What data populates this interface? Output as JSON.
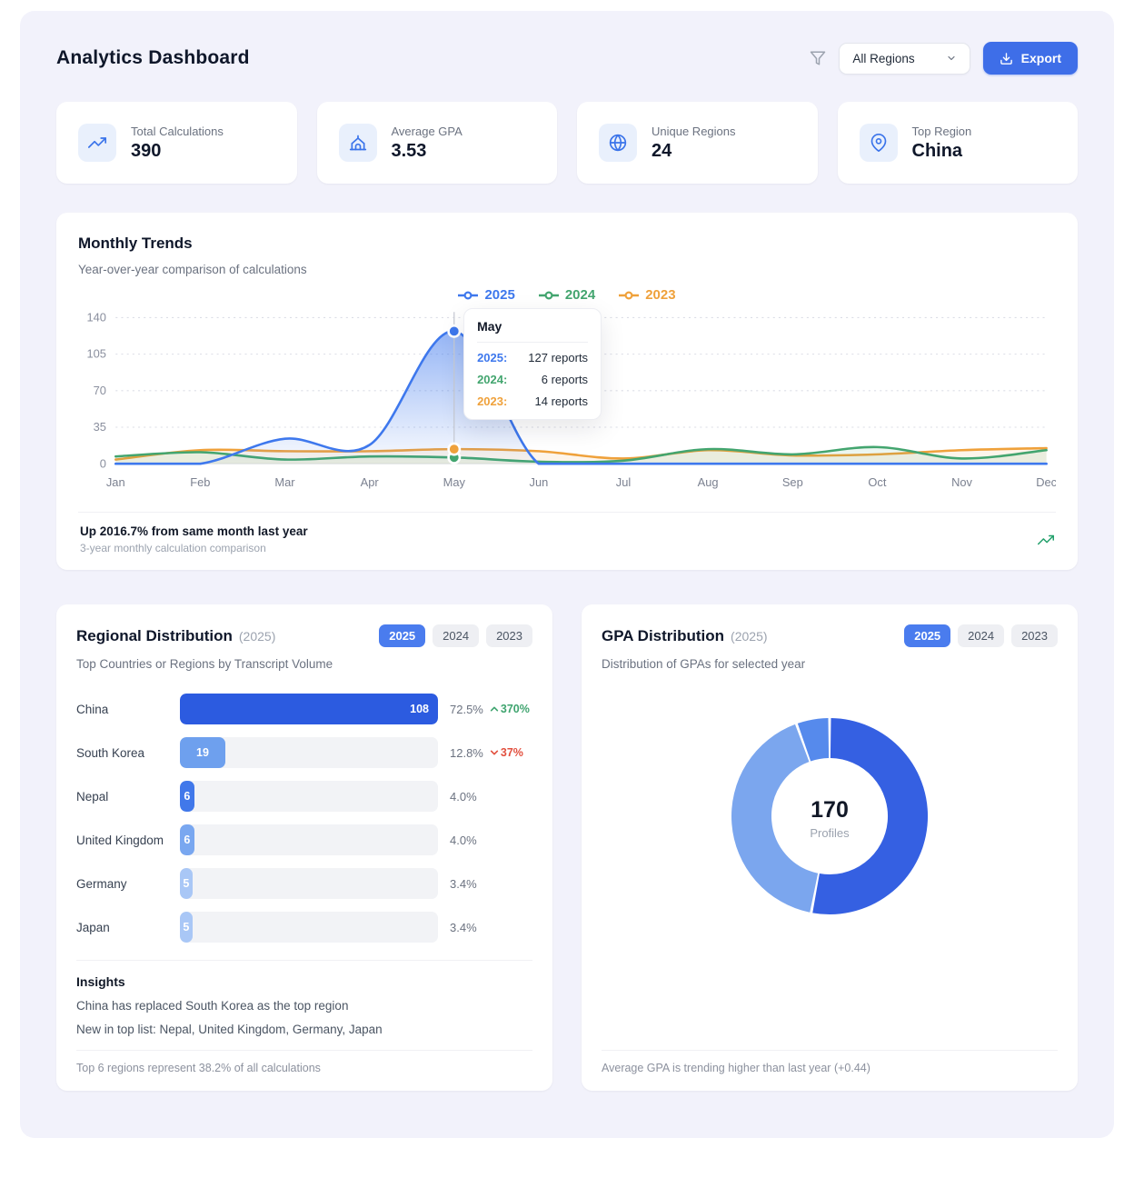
{
  "header": {
    "title": "Analytics Dashboard",
    "filter_icon": "funnel-icon",
    "region_filter": "All Regions",
    "export_label": "Export",
    "export_icon": "download-icon"
  },
  "stats": [
    {
      "label": "Total Calculations",
      "value": "390",
      "icon": "trending-up-icon"
    },
    {
      "label": "Average GPA",
      "value": "3.53",
      "icon": "school-icon"
    },
    {
      "label": "Unique Regions",
      "value": "24",
      "icon": "globe-icon"
    },
    {
      "label": "Top Region",
      "value": "China",
      "icon": "map-pin-icon"
    }
  ],
  "monthly_trends": {
    "title": "Monthly Trends",
    "subtitle": "Year-over-year comparison of calculations",
    "tooltip": {
      "month": "May",
      "rows": [
        {
          "year": "2025:",
          "value": "127 reports",
          "color": "#3E78ED"
        },
        {
          "year": "2024:",
          "value": "6 reports",
          "color": "#43A56F"
        },
        {
          "year": "2023:",
          "value": "14 reports",
          "color": "#EFA13B"
        }
      ]
    },
    "footer_bold": "Up 2016.7% from same month last year",
    "footer_sub": "3-year monthly calculation comparison",
    "footer_icon": "trending-up-icon"
  },
  "regional": {
    "title": "Regional Distribution",
    "title_suffix": "(2025)",
    "years": [
      "2025",
      "2024",
      "2023"
    ],
    "active_year": "2025",
    "subtitle": "Top Countries or Regions by Transcript Volume",
    "insights_title": "Insights",
    "insights_lines": [
      "China has replaced South Korea as the top region",
      "New in top list: Nepal, United Kingdom, Germany, Japan"
    ],
    "footer": "Top 6 regions represent 38.2% of all calculations"
  },
  "gpa": {
    "title": "GPA Distribution",
    "title_suffix": "(2025)",
    "years": [
      "2025",
      "2024",
      "2023"
    ],
    "active_year": "2025",
    "subtitle": "Distribution of GPAs for selected year",
    "footer": "Average GPA is trending higher than last year (+0.44)"
  },
  "colors": {
    "accent_blue": "#3E6EE8",
    "positive_green": "#3FA46F",
    "negative_red": "#E2503F"
  },
  "chart_data": [
    {
      "id": "monthly-trends",
      "type": "line",
      "title": "Monthly Trends",
      "x": [
        "Jan",
        "Feb",
        "Mar",
        "Apr",
        "May",
        "Jun",
        "Jul",
        "Aug",
        "Sep",
        "Oct",
        "Nov",
        "Dec"
      ],
      "series": [
        {
          "name": "2025",
          "color": "#3E78ED",
          "values": [
            0,
            0,
            24,
            18,
            127,
            0,
            0,
            0,
            0,
            0,
            0,
            0
          ],
          "area": "gradient"
        },
        {
          "name": "2024",
          "color": "#43A56F",
          "values": [
            7,
            11,
            4,
            7,
            6,
            2,
            3,
            14,
            9,
            16,
            5,
            13
          ],
          "area": "faint"
        },
        {
          "name": "2023",
          "color": "#EFA13B",
          "values": [
            4,
            13,
            12,
            12,
            14,
            12,
            5,
            13,
            8,
            9,
            13,
            15
          ],
          "area": "faint"
        }
      ],
      "ylim": [
        0,
        140
      ],
      "yticks": [
        0,
        35,
        70,
        105,
        140
      ],
      "grid": true,
      "legend_position": "top-center",
      "highlight_index": 4
    },
    {
      "id": "regional-distribution",
      "type": "bar",
      "orientation": "horizontal",
      "categories": [
        "China",
        "South Korea",
        "Nepal",
        "United Kingdom",
        "Germany",
        "Japan"
      ],
      "values": [
        108,
        19,
        6,
        6,
        5,
        5
      ],
      "percent_labels": [
        "72.5%",
        "12.8%",
        "4.0%",
        "4.0%",
        "3.4%",
        "3.4%"
      ],
      "changes": [
        {
          "direction": "up",
          "text": "370%"
        },
        {
          "direction": "down",
          "text": "37%"
        },
        null,
        null,
        null,
        null
      ],
      "bar_colors": [
        "#2C5BE0",
        "#6EA0EE",
        "#4178EA",
        "#79A7F0",
        "#A9C7F6",
        "#A9C7F6"
      ],
      "xmax": 108
    },
    {
      "id": "gpa-distribution",
      "type": "donut",
      "center_value": "170",
      "center_label": "Profiles",
      "segments": [
        {
          "value": 53,
          "color": "#3560E2"
        },
        {
          "value": 41.5,
          "color": "#7BA6EE"
        },
        {
          "value": 5.5,
          "color": "#568AEC"
        }
      ]
    }
  ]
}
